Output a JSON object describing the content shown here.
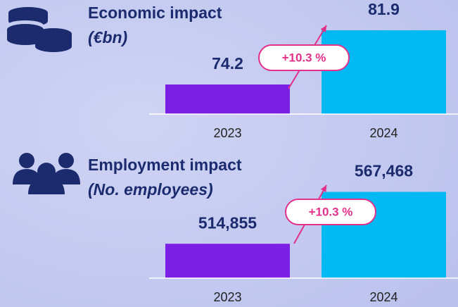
{
  "chart_data": [
    {
      "type": "bar",
      "title": "Economic impact",
      "subtitle": "(€bn)",
      "categories": [
        "2023",
        "2024"
      ],
      "values": [
        74.2,
        81.9
      ],
      "colors": [
        "#7b1fe4",
        "#00b8f2"
      ],
      "ylim": [
        70,
        82
      ],
      "annotation": "+10.3 %"
    },
    {
      "type": "bar",
      "title": "Employment impact",
      "subtitle": "(No. employees)",
      "categories": [
        "2023",
        "2024"
      ],
      "values": [
        514855,
        567468
      ],
      "value_labels": [
        "514,855",
        "567,468"
      ],
      "colors": [
        "#7b1fe4",
        "#00b8f2"
      ],
      "ylim": [
        480000,
        570000
      ],
      "annotation": "+10.3 %"
    }
  ]
}
